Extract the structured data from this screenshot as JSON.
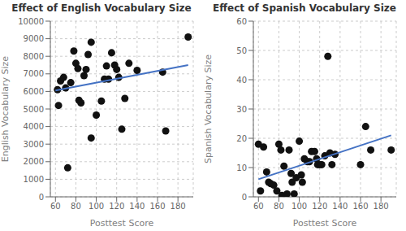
{
  "chart_data": [
    {
      "type": "scatter",
      "title": "Effect of English Vocabulary Size",
      "xlabel": "Posttest Score",
      "ylabel": "English Vocabulary Size",
      "xlim": [
        55,
        195
      ],
      "xticks": [
        60,
        80,
        100,
        120,
        140,
        160,
        180
      ],
      "ylim": [
        0,
        10000
      ],
      "yticks": [
        0,
        1000,
        2000,
        3000,
        4000,
        5000,
        6000,
        7000,
        8000,
        9000,
        10000
      ],
      "grid": true,
      "series": [
        {
          "type": "scatter",
          "color": "#111111",
          "x": [
            62,
            63,
            65,
            68,
            70,
            72,
            75,
            78,
            80,
            82,
            83,
            85,
            88,
            90,
            92,
            95,
            95,
            100,
            105,
            108,
            110,
            112,
            115,
            118,
            120,
            122,
            125,
            128,
            132,
            140,
            165,
            168,
            190
          ],
          "values": [
            6100,
            5200,
            6600,
            6800,
            6200,
            1650,
            6500,
            8300,
            7600,
            7300,
            5500,
            5350,
            6900,
            7250,
            8100,
            8800,
            3350,
            4650,
            5450,
            6700,
            7450,
            6700,
            8200,
            7500,
            7250,
            6800,
            3850,
            5600,
            7600,
            7200,
            7100,
            3750,
            9100
          ]
        },
        {
          "type": "line",
          "color": "#4472C4",
          "x": [
            60,
            190
          ],
          "values": [
            6050,
            7500
          ]
        }
      ]
    },
    {
      "type": "scatter",
      "title": "Effect of Spanish Vocabulary Size",
      "xlabel": "Posttest Score",
      "ylabel": "Spanish Vocabulary Size",
      "xlim": [
        55,
        195
      ],
      "xticks": [
        60,
        80,
        100,
        120,
        140,
        160,
        180
      ],
      "ylim": [
        0,
        60
      ],
      "yticks": [
        0,
        10,
        20,
        30,
        40,
        50,
        60
      ],
      "grid": true,
      "series": [
        {
          "type": "scatter",
          "color": "#111111",
          "x": [
            60,
            62,
            65,
            68,
            70,
            72,
            75,
            78,
            80,
            82,
            83,
            85,
            88,
            90,
            92,
            93,
            95,
            97,
            100,
            102,
            103,
            105,
            108,
            110,
            112,
            115,
            117,
            118,
            120,
            122,
            125,
            128,
            130,
            132,
            135,
            160,
            165,
            170,
            190
          ],
          "values": [
            18,
            2,
            17,
            8.5,
            5,
            4.5,
            4,
            2,
            18,
            16,
            0.5,
            10.5,
            1,
            16,
            8,
            5,
            1,
            6.5,
            19,
            7.5,
            5,
            13,
            12,
            12,
            15.5,
            15.5,
            13,
            11,
            11,
            11,
            14,
            48,
            15,
            11,
            14.5,
            11,
            24,
            16,
            16
          ]
        },
        {
          "type": "line",
          "color": "#4472C4",
          "x": [
            60,
            190
          ],
          "values": [
            6,
            21
          ]
        }
      ]
    }
  ]
}
